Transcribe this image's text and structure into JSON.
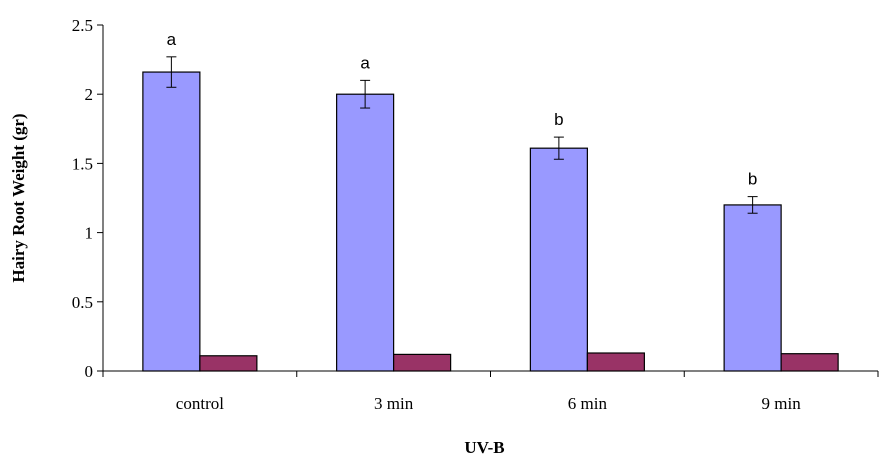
{
  "chart_data": {
    "type": "bar",
    "xlabel": "UV-B",
    "ylabel": "Hairy Root Weight (gr)",
    "ylim": [
      0,
      2.5
    ],
    "yticks": [
      0,
      0.5,
      1,
      1.5,
      2,
      2.5
    ],
    "ytick_labels": [
      "0",
      "0.5",
      "1",
      "1.5",
      "2",
      "2.5"
    ],
    "categories": [
      "control",
      "3 min",
      "6 min",
      "9 min"
    ],
    "series": [
      {
        "color": "#9999ff",
        "values": [
          2.16,
          2.0,
          1.61,
          1.2
        ],
        "errors": [
          0.11,
          0.1,
          0.08,
          0.06
        ],
        "labels": [
          "a",
          "a",
          "b",
          "b"
        ]
      },
      {
        "color": "#993366",
        "values": [
          0.11,
          0.12,
          0.13,
          0.125
        ]
      }
    ],
    "grid": false,
    "legend": "none"
  }
}
